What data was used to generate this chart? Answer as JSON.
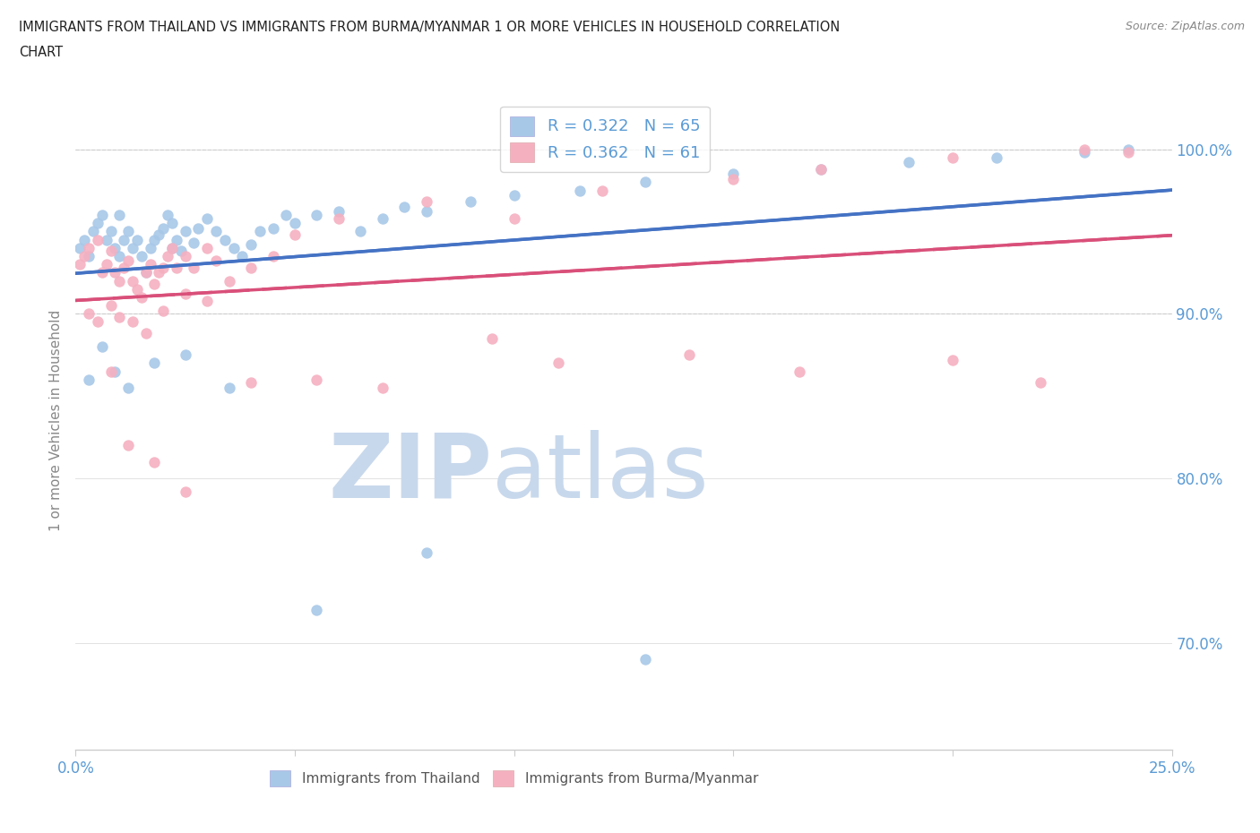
{
  "title_line1": "IMMIGRANTS FROM THAILAND VS IMMIGRANTS FROM BURMA/MYANMAR 1 OR MORE VEHICLES IN HOUSEHOLD CORRELATION",
  "title_line2": "CHART",
  "source_text": "Source: ZipAtlas.com",
  "ylabel": "1 or more Vehicles in Household",
  "xlim": [
    0.0,
    0.25
  ],
  "ylim": [
    0.635,
    1.035
  ],
  "xticks": [
    0.0,
    0.05,
    0.1,
    0.15,
    0.2,
    0.25
  ],
  "xticklabels": [
    "0.0%",
    "",
    "",
    "",
    "",
    "25.0%"
  ],
  "yticks": [
    0.7,
    0.8,
    0.9,
    1.0
  ],
  "yticklabels": [
    "70.0%",
    "80.0%",
    "90.0%",
    "100.0%"
  ],
  "thailand_color": "#a8c8e8",
  "burma_color": "#f5b0c0",
  "trend_thailand_color": "#4472c4",
  "trend_burma_color": "#d94f7a",
  "legend_label_thailand": "R = 0.322   N = 65",
  "legend_label_burma": "R = 0.362   N = 61",
  "legend_label_thailand_bottom": "Immigrants from Thailand",
  "legend_label_burma_bottom": "Immigrants from Burma/Myanmar",
  "watermark_zip": "ZIP",
  "watermark_atlas": "atlas",
  "watermark_color": "#c8d8ec",
  "background_color": "#ffffff",
  "thailand_x": [
    0.001,
    0.002,
    0.003,
    0.004,
    0.005,
    0.006,
    0.007,
    0.008,
    0.009,
    0.01,
    0.01,
    0.011,
    0.012,
    0.013,
    0.014,
    0.015,
    0.016,
    0.017,
    0.018,
    0.019,
    0.02,
    0.021,
    0.022,
    0.022,
    0.023,
    0.024,
    0.025,
    0.027,
    0.028,
    0.03,
    0.032,
    0.034,
    0.036,
    0.038,
    0.04,
    0.042,
    0.045,
    0.048,
    0.05,
    0.055,
    0.06,
    0.065,
    0.07,
    0.075,
    0.08,
    0.09,
    0.1,
    0.115,
    0.13,
    0.15,
    0.17,
    0.19,
    0.21,
    0.23,
    0.24,
    0.003,
    0.006,
    0.009,
    0.012,
    0.018,
    0.025,
    0.035,
    0.055,
    0.08,
    0.13
  ],
  "thailand_y": [
    0.94,
    0.945,
    0.935,
    0.95,
    0.955,
    0.96,
    0.945,
    0.95,
    0.94,
    0.935,
    0.96,
    0.945,
    0.95,
    0.94,
    0.945,
    0.935,
    0.925,
    0.94,
    0.945,
    0.948,
    0.952,
    0.96,
    0.955,
    0.94,
    0.945,
    0.938,
    0.95,
    0.943,
    0.952,
    0.958,
    0.95,
    0.945,
    0.94,
    0.935,
    0.942,
    0.95,
    0.952,
    0.96,
    0.955,
    0.96,
    0.962,
    0.95,
    0.958,
    0.965,
    0.962,
    0.968,
    0.972,
    0.975,
    0.98,
    0.985,
    0.988,
    0.992,
    0.995,
    0.998,
    1.0,
    0.86,
    0.88,
    0.865,
    0.855,
    0.87,
    0.875,
    0.855,
    0.72,
    0.755,
    0.69
  ],
  "burma_x": [
    0.001,
    0.002,
    0.003,
    0.005,
    0.006,
    0.007,
    0.008,
    0.009,
    0.01,
    0.011,
    0.012,
    0.013,
    0.014,
    0.015,
    0.016,
    0.017,
    0.018,
    0.019,
    0.02,
    0.021,
    0.022,
    0.023,
    0.025,
    0.027,
    0.03,
    0.032,
    0.035,
    0.04,
    0.045,
    0.05,
    0.06,
    0.08,
    0.1,
    0.12,
    0.15,
    0.17,
    0.2,
    0.23,
    0.24,
    0.003,
    0.005,
    0.008,
    0.01,
    0.013,
    0.016,
    0.02,
    0.025,
    0.03,
    0.04,
    0.055,
    0.07,
    0.095,
    0.11,
    0.14,
    0.165,
    0.2,
    0.22,
    0.008,
    0.012,
    0.018,
    0.025
  ],
  "burma_y": [
    0.93,
    0.935,
    0.94,
    0.945,
    0.925,
    0.93,
    0.938,
    0.925,
    0.92,
    0.928,
    0.932,
    0.92,
    0.915,
    0.91,
    0.925,
    0.93,
    0.918,
    0.925,
    0.928,
    0.935,
    0.94,
    0.928,
    0.935,
    0.928,
    0.94,
    0.932,
    0.92,
    0.928,
    0.935,
    0.948,
    0.958,
    0.968,
    0.958,
    0.975,
    0.982,
    0.988,
    0.995,
    1.0,
    0.998,
    0.9,
    0.895,
    0.905,
    0.898,
    0.895,
    0.888,
    0.902,
    0.912,
    0.908,
    0.858,
    0.86,
    0.855,
    0.885,
    0.87,
    0.875,
    0.865,
    0.872,
    0.858,
    0.865,
    0.82,
    0.81,
    0.792
  ]
}
